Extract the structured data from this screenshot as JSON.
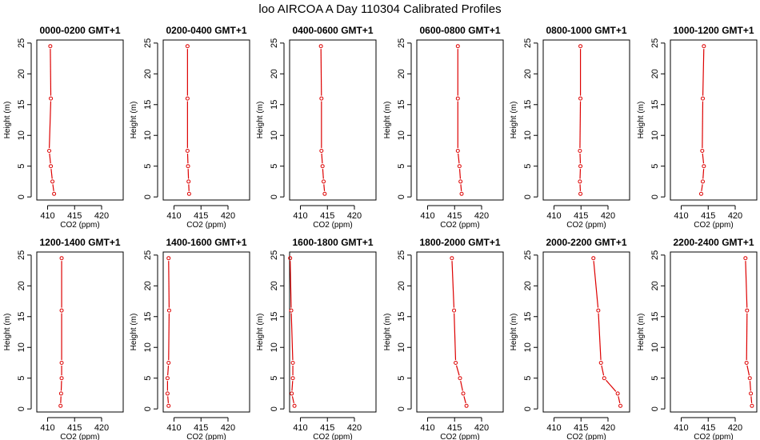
{
  "figure": {
    "title": "loo AIRCOA A  Day 110304  Calibrated Profiles"
  },
  "colors": {
    "series": "#dd0000",
    "axis": "#000000",
    "background": "#ffffff"
  },
  "chart_data": [
    {
      "type": "line",
      "title": "0000-0200 GMT+1",
      "xlabel": "CO2 (ppm)",
      "ylabel": "Height (m)",
      "xlim": [
        408,
        424
      ],
      "ylim": [
        -0.5,
        25.5
      ],
      "xticks": [
        410,
        415,
        420
      ],
      "yticks": [
        0,
        5,
        10,
        15,
        20,
        25
      ],
      "grid": false,
      "series": [
        {
          "x": [
            411.2,
            410.9,
            410.6,
            410.3,
            410.6,
            410.5
          ],
          "y": [
            0.5,
            2.5,
            5,
            7.5,
            16,
            24.5
          ]
        }
      ]
    },
    {
      "type": "line",
      "title": "0200-0400 GMT+1",
      "xlabel": "CO2 (ppm)",
      "ylabel": "Height (m)",
      "xlim": [
        408,
        424
      ],
      "ylim": [
        -0.5,
        25.5
      ],
      "xticks": [
        410,
        415,
        420
      ],
      "yticks": [
        0,
        5,
        10,
        15,
        20,
        25
      ],
      "grid": false,
      "series": [
        {
          "x": [
            412.8,
            412.7,
            412.6,
            412.5,
            412.5,
            412.5
          ],
          "y": [
            0.5,
            2.5,
            5,
            7.5,
            16,
            24.5
          ]
        }
      ]
    },
    {
      "type": "line",
      "title": "0400-0600 GMT+1",
      "xlabel": "CO2 (ppm)",
      "ylabel": "Height (m)",
      "xlim": [
        408,
        424
      ],
      "ylim": [
        -0.5,
        25.5
      ],
      "xticks": [
        410,
        415,
        420
      ],
      "yticks": [
        0,
        5,
        10,
        15,
        20,
        25
      ],
      "grid": false,
      "series": [
        {
          "x": [
            414.5,
            414.3,
            414.1,
            413.9,
            413.9,
            413.8
          ],
          "y": [
            0.5,
            2.5,
            5,
            7.5,
            16,
            24.5
          ]
        }
      ]
    },
    {
      "type": "line",
      "title": "0600-0800 GMT+1",
      "xlabel": "CO2 (ppm)",
      "ylabel": "Height (m)",
      "xlim": [
        408,
        424
      ],
      "ylim": [
        -0.5,
        25.5
      ],
      "xticks": [
        410,
        415,
        420
      ],
      "yticks": [
        0,
        5,
        10,
        15,
        20,
        25
      ],
      "grid": false,
      "series": [
        {
          "x": [
            416.3,
            416.1,
            415.9,
            415.6,
            415.6,
            415.6
          ],
          "y": [
            0.5,
            2.5,
            5,
            7.5,
            16,
            24.5
          ]
        }
      ]
    },
    {
      "type": "line",
      "title": "0800-1000 GMT+1",
      "xlabel": "CO2 (ppm)",
      "ylabel": "Height (m)",
      "xlim": [
        408,
        424
      ],
      "ylim": [
        -0.5,
        25.5
      ],
      "xticks": [
        410,
        415,
        420
      ],
      "yticks": [
        0,
        5,
        10,
        15,
        20,
        25
      ],
      "grid": false,
      "series": [
        {
          "x": [
            414.9,
            414.8,
            414.9,
            414.8,
            414.9,
            414.9
          ],
          "y": [
            0.5,
            2.5,
            5,
            7.5,
            16,
            24.5
          ]
        }
      ]
    },
    {
      "type": "line",
      "title": "1000-1200 GMT+1",
      "xlabel": "CO2 (ppm)",
      "ylabel": "Height (m)",
      "xlim": [
        408,
        424
      ],
      "ylim": [
        -0.5,
        25.5
      ],
      "xticks": [
        410,
        415,
        420
      ],
      "yticks": [
        0,
        5,
        10,
        15,
        20,
        25
      ],
      "grid": false,
      "series": [
        {
          "x": [
            413.7,
            414.0,
            414.2,
            413.9,
            414.0,
            414.2
          ],
          "y": [
            0.5,
            2.5,
            5,
            7.5,
            16,
            24.5
          ]
        }
      ]
    },
    {
      "type": "line",
      "title": "1200-1400 GMT+1",
      "xlabel": "CO2 (ppm)",
      "ylabel": "Height (m)",
      "xlim": [
        408,
        424
      ],
      "ylim": [
        -0.5,
        25.5
      ],
      "xticks": [
        410,
        415,
        420
      ],
      "yticks": [
        0,
        5,
        10,
        15,
        20,
        25
      ],
      "grid": false,
      "series": [
        {
          "x": [
            412.4,
            412.5,
            412.6,
            412.6,
            412.6,
            412.6
          ],
          "y": [
            0.5,
            2.5,
            5,
            7.5,
            16,
            24.5
          ]
        }
      ]
    },
    {
      "type": "line",
      "title": "1400-1600 GMT+1",
      "xlabel": "CO2 (ppm)",
      "ylabel": "Height (m)",
      "xlim": [
        408,
        424
      ],
      "ylim": [
        -0.5,
        25.5
      ],
      "xticks": [
        410,
        415,
        420
      ],
      "yticks": [
        0,
        5,
        10,
        15,
        20,
        25
      ],
      "grid": false,
      "series": [
        {
          "x": [
            409.0,
            408.8,
            408.8,
            409.0,
            409.1,
            409.0
          ],
          "y": [
            0.5,
            2.5,
            5,
            7.5,
            16,
            24.5
          ]
        }
      ]
    },
    {
      "type": "line",
      "title": "1600-1800 GMT+1",
      "xlabel": "CO2 (ppm)",
      "ylabel": "Height (m)",
      "xlim": [
        408,
        424
      ],
      "ylim": [
        -0.5,
        25.5
      ],
      "xticks": [
        410,
        415,
        420
      ],
      "yticks": [
        0,
        5,
        10,
        15,
        20,
        25
      ],
      "grid": false,
      "series": [
        {
          "x": [
            408.9,
            408.4,
            408.6,
            408.6,
            408.3,
            408.1
          ],
          "y": [
            0.5,
            2.5,
            5,
            7.5,
            16,
            24.5
          ]
        }
      ]
    },
    {
      "type": "line",
      "title": "1800-2000 GMT+1",
      "xlabel": "CO2 (ppm)",
      "ylabel": "Height (m)",
      "xlim": [
        408,
        424
      ],
      "ylim": [
        -0.5,
        25.5
      ],
      "xticks": [
        410,
        415,
        420
      ],
      "yticks": [
        0,
        5,
        10,
        15,
        20,
        25
      ],
      "grid": false,
      "series": [
        {
          "x": [
            417.2,
            416.6,
            416.0,
            415.2,
            414.9,
            414.5
          ],
          "y": [
            0.5,
            2.5,
            5,
            7.5,
            16,
            24.5
          ]
        }
      ]
    },
    {
      "type": "line",
      "title": "2000-2200 GMT+1",
      "xlabel": "CO2 (ppm)",
      "ylabel": "Height (m)",
      "xlim": [
        408,
        424
      ],
      "ylim": [
        -0.5,
        25.5
      ],
      "xticks": [
        410,
        415,
        420
      ],
      "yticks": [
        0,
        5,
        10,
        15,
        20,
        25
      ],
      "grid": false,
      "series": [
        {
          "x": [
            422.3,
            421.8,
            419.3,
            418.7,
            418.2,
            417.3
          ],
          "y": [
            0.5,
            2.5,
            5,
            7.5,
            16,
            24.5
          ]
        }
      ]
    },
    {
      "type": "line",
      "title": "2200-2400 GMT+1",
      "xlabel": "CO2 (ppm)",
      "ylabel": "Height (m)",
      "xlim": [
        408,
        424
      ],
      "ylim": [
        -0.5,
        25.5
      ],
      "xticks": [
        410,
        415,
        420
      ],
      "yticks": [
        0,
        5,
        10,
        15,
        20,
        25
      ],
      "grid": false,
      "series": [
        {
          "x": [
            423.1,
            422.9,
            422.7,
            422.1,
            422.2,
            421.9
          ],
          "y": [
            0.5,
            2.5,
            5,
            7.5,
            16,
            24.5
          ]
        }
      ]
    }
  ]
}
